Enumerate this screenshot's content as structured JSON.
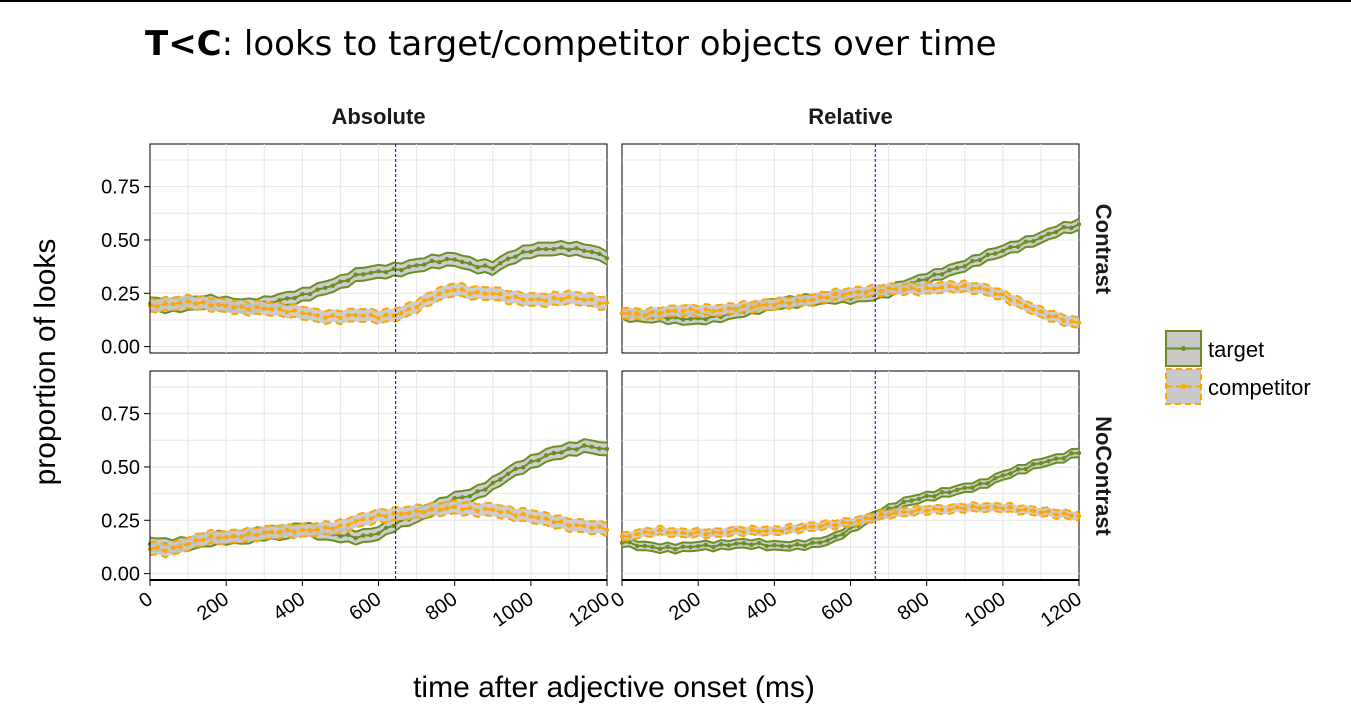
{
  "chart_data": {
    "type": "line",
    "title_bold": "T<C",
    "title_rest": ": looks to target/competitor objects over time",
    "xlabel": "time after adjective onset (ms)",
    "ylabel": "proportion of looks",
    "xlim": [
      0,
      1200
    ],
    "ylim": [
      -0.03,
      0.95
    ],
    "x_ticks": [
      0,
      200,
      400,
      600,
      800,
      1000,
      1200
    ],
    "y_ticks": [
      0.0,
      0.25,
      0.5,
      0.75
    ],
    "x_tick_labels": [
      "0",
      "200",
      "400",
      "600",
      "800",
      "1000",
      "1200"
    ],
    "y_tick_labels": [
      "0.00",
      "0.25",
      "0.50",
      "0.75"
    ],
    "col_facets": [
      "Absolute",
      "Relative"
    ],
    "row_facets": [
      "Contrast",
      "NoContrast"
    ],
    "grid": true,
    "legend_position": "right",
    "colors": {
      "target": "#6b8e23",
      "competitor": "#ffa500",
      "ribbon": "#c8c8c8",
      "vline": "#0000cd"
    },
    "series_names": [
      "target",
      "competitor"
    ],
    "panels": [
      {
        "col": "Absolute",
        "row": "Contrast",
        "vline": 645,
        "target": {
          "x": [
            0,
            50,
            100,
            150,
            200,
            250,
            300,
            350,
            400,
            450,
            500,
            550,
            600,
            650,
            700,
            750,
            800,
            850,
            900,
            950,
            1000,
            1050,
            1100,
            1150,
            1200
          ],
          "y": [
            0.2,
            0.19,
            0.2,
            0.21,
            0.2,
            0.19,
            0.2,
            0.22,
            0.24,
            0.27,
            0.3,
            0.34,
            0.35,
            0.36,
            0.38,
            0.4,
            0.41,
            0.38,
            0.37,
            0.42,
            0.45,
            0.46,
            0.46,
            0.45,
            0.42
          ],
          "ci": 0.03
        },
        "competitor": {
          "x": [
            0,
            50,
            100,
            150,
            200,
            250,
            300,
            350,
            400,
            450,
            500,
            550,
            600,
            650,
            700,
            750,
            800,
            850,
            900,
            950,
            1000,
            1050,
            1100,
            1150,
            1200
          ],
          "y": [
            0.19,
            0.2,
            0.21,
            0.2,
            0.19,
            0.18,
            0.18,
            0.17,
            0.16,
            0.14,
            0.14,
            0.15,
            0.14,
            0.15,
            0.19,
            0.24,
            0.27,
            0.25,
            0.25,
            0.23,
            0.22,
            0.22,
            0.23,
            0.22,
            0.2
          ],
          "ci": 0.03
        }
      },
      {
        "col": "Relative",
        "row": "Contrast",
        "vline": 665,
        "target": {
          "x": [
            0,
            50,
            100,
            150,
            200,
            250,
            300,
            350,
            400,
            450,
            500,
            550,
            600,
            650,
            700,
            750,
            800,
            850,
            900,
            950,
            1000,
            1050,
            1100,
            1150,
            1200
          ],
          "y": [
            0.15,
            0.14,
            0.14,
            0.13,
            0.13,
            0.14,
            0.16,
            0.18,
            0.2,
            0.21,
            0.22,
            0.23,
            0.23,
            0.24,
            0.26,
            0.29,
            0.32,
            0.35,
            0.38,
            0.42,
            0.45,
            0.48,
            0.51,
            0.55,
            0.57
          ],
          "ci": 0.025
        },
        "competitor": {
          "x": [
            0,
            50,
            100,
            150,
            200,
            250,
            300,
            350,
            400,
            450,
            500,
            550,
            600,
            650,
            700,
            750,
            800,
            850,
            900,
            950,
            1000,
            1050,
            1100,
            1150,
            1200
          ],
          "y": [
            0.16,
            0.15,
            0.16,
            0.17,
            0.17,
            0.17,
            0.18,
            0.19,
            0.2,
            0.21,
            0.22,
            0.24,
            0.25,
            0.26,
            0.27,
            0.27,
            0.27,
            0.28,
            0.28,
            0.27,
            0.24,
            0.2,
            0.16,
            0.13,
            0.11
          ],
          "ci": 0.025
        }
      },
      {
        "col": "Absolute",
        "row": "NoContrast",
        "vline": 645,
        "target": {
          "x": [
            0,
            50,
            100,
            150,
            200,
            250,
            300,
            350,
            400,
            450,
            500,
            550,
            600,
            650,
            700,
            750,
            800,
            850,
            900,
            950,
            1000,
            1050,
            1100,
            1150,
            1200
          ],
          "y": [
            0.14,
            0.13,
            0.14,
            0.16,
            0.17,
            0.17,
            0.19,
            0.19,
            0.21,
            0.19,
            0.18,
            0.17,
            0.19,
            0.24,
            0.27,
            0.31,
            0.35,
            0.37,
            0.42,
            0.48,
            0.52,
            0.56,
            0.58,
            0.6,
            0.58
          ],
          "ci": 0.03
        },
        "competitor": {
          "x": [
            0,
            50,
            100,
            150,
            200,
            250,
            300,
            350,
            400,
            450,
            500,
            550,
            600,
            650,
            700,
            750,
            800,
            850,
            900,
            950,
            1000,
            1050,
            1100,
            1150,
            1200
          ],
          "y": [
            0.12,
            0.11,
            0.14,
            0.17,
            0.17,
            0.18,
            0.19,
            0.2,
            0.2,
            0.21,
            0.22,
            0.25,
            0.27,
            0.28,
            0.29,
            0.3,
            0.31,
            0.3,
            0.3,
            0.28,
            0.27,
            0.25,
            0.23,
            0.22,
            0.21
          ],
          "ci": 0.03
        }
      },
      {
        "col": "Relative",
        "row": "NoContrast",
        "vline": 665,
        "target": {
          "x": [
            0,
            50,
            100,
            150,
            200,
            250,
            300,
            350,
            400,
            450,
            500,
            550,
            600,
            650,
            700,
            750,
            800,
            850,
            900,
            950,
            1000,
            1050,
            1100,
            1150,
            1200
          ],
          "y": [
            0.15,
            0.13,
            0.12,
            0.12,
            0.13,
            0.13,
            0.14,
            0.14,
            0.13,
            0.13,
            0.14,
            0.16,
            0.21,
            0.26,
            0.3,
            0.34,
            0.36,
            0.38,
            0.4,
            0.42,
            0.46,
            0.49,
            0.52,
            0.54,
            0.57
          ],
          "ci": 0.02
        },
        "competitor": {
          "x": [
            0,
            50,
            100,
            150,
            200,
            250,
            300,
            350,
            400,
            450,
            500,
            550,
            600,
            650,
            700,
            750,
            800,
            850,
            900,
            950,
            1000,
            1050,
            1100,
            1150,
            1200
          ],
          "y": [
            0.17,
            0.19,
            0.2,
            0.19,
            0.19,
            0.19,
            0.2,
            0.2,
            0.2,
            0.21,
            0.22,
            0.23,
            0.24,
            0.26,
            0.28,
            0.29,
            0.3,
            0.3,
            0.31,
            0.31,
            0.31,
            0.3,
            0.29,
            0.28,
            0.27
          ],
          "ci": 0.02
        }
      }
    ]
  }
}
